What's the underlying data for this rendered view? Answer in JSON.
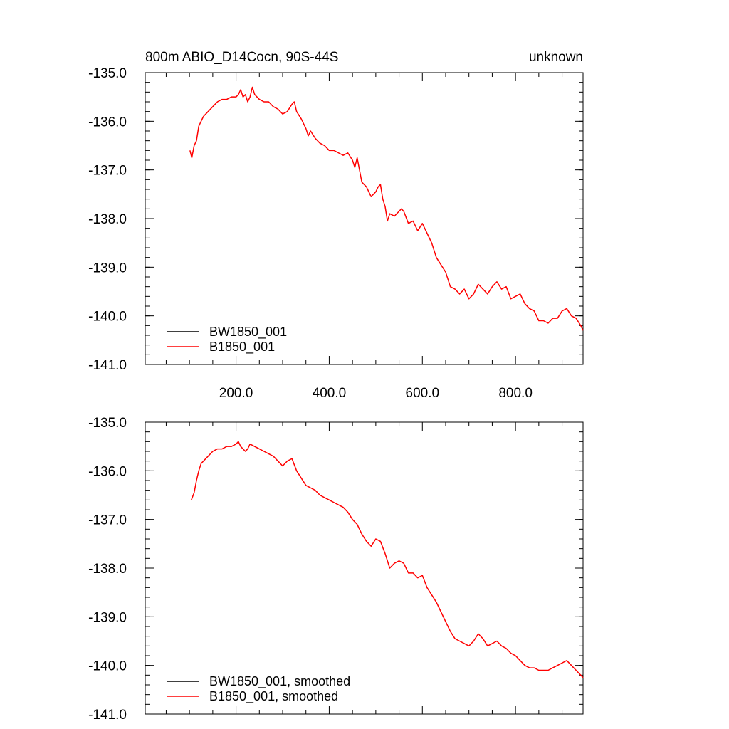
{
  "title_left": "800m ABIO_D14Cocn, 90S-44S",
  "title_right": "unknown",
  "colors": {
    "BW1850_001": "#000000",
    "B1850_001": "#ff0000"
  },
  "chart_data": [
    {
      "type": "line",
      "xlim": [
        5,
        945
      ],
      "ylim": [
        -141,
        -135
      ],
      "x_ticks": [
        200,
        400,
        600,
        800
      ],
      "x_tick_labels": [
        "200.0",
        "400.0",
        "600.0",
        "800.0"
      ],
      "y_ticks": [
        -135,
        -136,
        -137,
        -138,
        -139,
        -140,
        -141
      ],
      "y_tick_labels": [
        "-135.0",
        "-136.0",
        "-137.0",
        "-138.0",
        "-139.0",
        "-140.0",
        "-141.0"
      ],
      "legend": [
        "BW1850_001",
        "B1850_001"
      ],
      "legend_position": "bottom-left",
      "grid": false,
      "series": [
        {
          "name": "BW1850_001",
          "color": "#000000",
          "x": [],
          "y": []
        },
        {
          "name": "B1850_001",
          "color": "#ff0000",
          "x": [
            101,
            105,
            110,
            115,
            120,
            125,
            130,
            140,
            150,
            160,
            170,
            180,
            190,
            200,
            205,
            210,
            215,
            220,
            225,
            230,
            235,
            240,
            245,
            250,
            260,
            270,
            280,
            290,
            300,
            310,
            320,
            325,
            330,
            340,
            350,
            355,
            360,
            370,
            380,
            390,
            400,
            410,
            420,
            430,
            440,
            450,
            455,
            460,
            470,
            480,
            490,
            500,
            505,
            510,
            515,
            520,
            525,
            530,
            540,
            550,
            555,
            560,
            570,
            580,
            590,
            600,
            610,
            620,
            630,
            640,
            650,
            660,
            670,
            680,
            690,
            700,
            710,
            720,
            730,
            740,
            750,
            760,
            770,
            780,
            790,
            800,
            810,
            820,
            830,
            840,
            850,
            860,
            870,
            880,
            890,
            900,
            910,
            920,
            930,
            940,
            945
          ],
          "y": [
            -136.6,
            -136.75,
            -136.5,
            -136.4,
            -136.1,
            -136.0,
            -135.9,
            -135.8,
            -135.7,
            -135.6,
            -135.55,
            -135.55,
            -135.5,
            -135.5,
            -135.45,
            -135.35,
            -135.5,
            -135.45,
            -135.6,
            -135.5,
            -135.3,
            -135.45,
            -135.5,
            -135.55,
            -135.6,
            -135.6,
            -135.7,
            -135.75,
            -135.85,
            -135.8,
            -135.65,
            -135.6,
            -135.8,
            -135.95,
            -136.15,
            -136.3,
            -136.2,
            -136.35,
            -136.45,
            -136.5,
            -136.6,
            -136.6,
            -136.65,
            -136.7,
            -136.65,
            -136.8,
            -136.95,
            -136.75,
            -137.25,
            -137.35,
            -137.55,
            -137.45,
            -137.35,
            -137.3,
            -137.6,
            -137.75,
            -138.05,
            -137.9,
            -137.95,
            -137.85,
            -137.8,
            -137.85,
            -138.1,
            -138.05,
            -138.25,
            -138.1,
            -138.3,
            -138.5,
            -138.8,
            -138.95,
            -139.1,
            -139.4,
            -139.45,
            -139.55,
            -139.45,
            -139.65,
            -139.55,
            -139.35,
            -139.45,
            -139.55,
            -139.4,
            -139.3,
            -139.45,
            -139.4,
            -139.65,
            -139.6,
            -139.55,
            -139.75,
            -139.85,
            -139.9,
            -140.1,
            -140.1,
            -140.15,
            -140.05,
            -140.05,
            -139.9,
            -139.85,
            -140.0,
            -140.05,
            -140.2,
            -140.3
          ]
        }
      ]
    },
    {
      "type": "line",
      "xlim": [
        5,
        945
      ],
      "ylim": [
        -141,
        -135
      ],
      "x_ticks": [
        200,
        400,
        600,
        800
      ],
      "x_tick_labels": [],
      "y_ticks": [
        -135,
        -136,
        -137,
        -138,
        -139,
        -140,
        -141
      ],
      "y_tick_labels": [
        "-135.0",
        "-136.0",
        "-137.0",
        "-138.0",
        "-139.0",
        "-140.0",
        "-141.0"
      ],
      "legend": [
        "BW1850_001, smoothed",
        "B1850_001, smoothed"
      ],
      "legend_position": "bottom-left",
      "grid": false,
      "series": [
        {
          "name": "BW1850_001, smoothed",
          "color": "#000000",
          "x": [],
          "y": []
        },
        {
          "name": "B1850_001, smoothed",
          "color": "#ff0000",
          "x": [
            104,
            110,
            115,
            120,
            125,
            130,
            140,
            150,
            160,
            170,
            180,
            190,
            200,
            205,
            210,
            215,
            220,
            225,
            230,
            240,
            250,
            260,
            270,
            280,
            290,
            300,
            310,
            320,
            330,
            340,
            350,
            360,
            370,
            380,
            390,
            400,
            410,
            420,
            430,
            440,
            450,
            460,
            470,
            480,
            490,
            500,
            510,
            520,
            530,
            540,
            550,
            560,
            570,
            580,
            590,
            600,
            610,
            620,
            630,
            640,
            650,
            660,
            670,
            680,
            690,
            700,
            710,
            720,
            730,
            740,
            750,
            760,
            770,
            780,
            790,
            800,
            810,
            820,
            830,
            840,
            850,
            860,
            870,
            880,
            890,
            900,
            910,
            920,
            930,
            940,
            945
          ],
          "y": [
            -136.6,
            -136.45,
            -136.2,
            -136.0,
            -135.85,
            -135.8,
            -135.7,
            -135.6,
            -135.55,
            -135.55,
            -135.5,
            -135.5,
            -135.45,
            -135.4,
            -135.5,
            -135.55,
            -135.6,
            -135.55,
            -135.45,
            -135.5,
            -135.55,
            -135.6,
            -135.65,
            -135.7,
            -135.8,
            -135.9,
            -135.8,
            -135.75,
            -136.0,
            -136.15,
            -136.3,
            -136.35,
            -136.4,
            -136.5,
            -136.55,
            -136.6,
            -136.65,
            -136.7,
            -136.75,
            -136.85,
            -137.0,
            -137.1,
            -137.3,
            -137.45,
            -137.55,
            -137.4,
            -137.45,
            -137.7,
            -138.0,
            -137.9,
            -137.85,
            -137.9,
            -138.1,
            -138.1,
            -138.2,
            -138.15,
            -138.4,
            -138.55,
            -138.7,
            -138.9,
            -139.1,
            -139.3,
            -139.45,
            -139.5,
            -139.55,
            -139.6,
            -139.5,
            -139.35,
            -139.45,
            -139.6,
            -139.55,
            -139.5,
            -139.6,
            -139.65,
            -139.75,
            -139.8,
            -139.9,
            -140.0,
            -140.05,
            -140.05,
            -140.1,
            -140.1,
            -140.1,
            -140.05,
            -140.0,
            -139.95,
            -139.9,
            -140.0,
            -140.1,
            -140.2,
            -140.25
          ]
        }
      ]
    }
  ]
}
